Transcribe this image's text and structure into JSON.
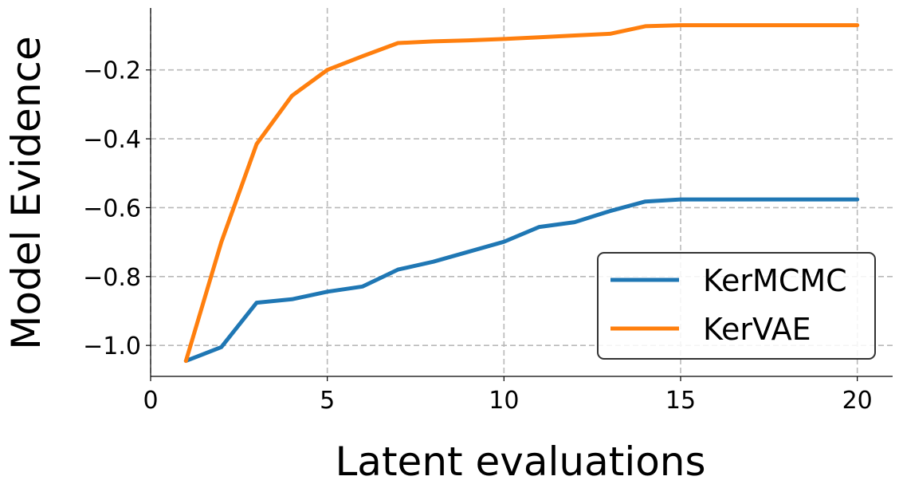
{
  "chart_data": {
    "type": "line",
    "xlabel": "Latent evaluations",
    "ylabel": "Model Evidence",
    "xlim": [
      0,
      21
    ],
    "ylim": [
      -1.09,
      -0.02
    ],
    "xticks": [
      0,
      5,
      10,
      15,
      20
    ],
    "xtick_labels": [
      "0",
      "5",
      "10",
      "15",
      "20"
    ],
    "yticks": [
      -1.0,
      -0.8,
      -0.6,
      -0.4,
      -0.2
    ],
    "ytick_labels": [
      "−1.0",
      "−0.8",
      "−0.6",
      "−0.4",
      "−0.2"
    ],
    "grid": true,
    "legend_position": "lower-right",
    "series": [
      {
        "name": "KerMCMC",
        "color": "#1f77b4",
        "x": [
          1,
          2,
          3,
          4,
          5,
          6,
          7,
          8,
          9,
          10,
          11,
          12,
          13,
          14,
          15,
          16,
          17,
          18,
          19,
          20
        ],
        "values": [
          -1.045,
          -1.005,
          -0.876,
          -0.866,
          -0.844,
          -0.829,
          -0.78,
          -0.757,
          -0.728,
          -0.699,
          -0.656,
          -0.642,
          -0.61,
          -0.582,
          -0.576,
          -0.576,
          -0.576,
          -0.576,
          -0.576,
          -0.576
        ]
      },
      {
        "name": "KerVAE",
        "color": "#ff7f0e",
        "x": [
          1,
          2,
          3,
          4,
          5,
          6,
          7,
          8,
          9,
          10,
          11,
          12,
          13,
          14,
          15,
          16,
          17,
          18,
          19,
          20
        ],
        "values": [
          -1.045,
          -0.7,
          -0.415,
          -0.275,
          -0.2,
          -0.16,
          -0.122,
          -0.117,
          -0.114,
          -0.11,
          -0.105,
          -0.1,
          -0.095,
          -0.073,
          -0.07,
          -0.07,
          -0.07,
          -0.07,
          -0.07,
          -0.07
        ]
      }
    ]
  }
}
